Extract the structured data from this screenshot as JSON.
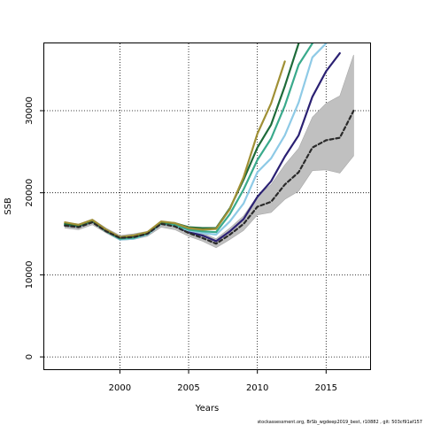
{
  "chart_data": {
    "type": "line",
    "title": "",
    "xlabel": "Years",
    "ylabel": "SSB",
    "xlim": [
      1994.5,
      2018.2
    ],
    "ylim": [
      -1500,
      38200
    ],
    "x_ticks": [
      2000,
      2005,
      2010,
      2015
    ],
    "y_ticks": [
      0,
      10000,
      20000,
      30000
    ],
    "grid": "dotted",
    "credit": "stockassessment.org, BrSb_wgdeep2019_best, r10882 , git: 503cf91af157",
    "band": {
      "x": [
        1996,
        1997,
        1998,
        1999,
        2000,
        2001,
        2002,
        2003,
        2004,
        2005,
        2006,
        2007,
        2008,
        2009,
        2010,
        2011,
        2012,
        2013,
        2014,
        2015,
        2016,
        2017
      ],
      "lower": [
        15700,
        15500,
        16100,
        15100,
        14200,
        14300,
        14700,
        15800,
        15500,
        14700,
        14100,
        13300,
        14300,
        15400,
        17300,
        17600,
        19200,
        20200,
        22700,
        22800,
        22400,
        24500
      ],
      "upper": [
        16400,
        16200,
        16800,
        15700,
        14800,
        15000,
        15300,
        16500,
        16300,
        15600,
        15100,
        14400,
        15700,
        17200,
        19600,
        21000,
        23400,
        25400,
        29200,
        30900,
        31800,
        36800
      ]
    },
    "series": [
      {
        "color": "#2a2a2a",
        "dash": true,
        "x": [
          1996,
          1997,
          1998,
          1999,
          2000,
          2001,
          2002,
          2003,
          2004,
          2005,
          2006,
          2007,
          2008,
          2009,
          2010,
          2011,
          2012,
          2013,
          2014,
          2015,
          2016,
          2017
        ],
        "values": [
          16000,
          15800,
          16400,
          15300,
          14500,
          14600,
          15000,
          16200,
          15900,
          15100,
          14500,
          13800,
          14900,
          16200,
          18300,
          18900,
          21000,
          22500,
          25500,
          26400,
          26700,
          30000
        ]
      },
      {
        "color": "#2b2173",
        "x": [
          1996,
          1997,
          1998,
          1999,
          2000,
          2001,
          2002,
          2003,
          2004,
          2005,
          2006,
          2007,
          2008,
          2009,
          2010,
          2011,
          2012,
          2013,
          2014,
          2015,
          2016
        ],
        "values": [
          16000,
          15900,
          16500,
          15400,
          14500,
          14700,
          15100,
          16300,
          16000,
          15200,
          14800,
          14100,
          15300,
          16800,
          19500,
          21400,
          24400,
          27000,
          31700,
          34800,
          37000
        ]
      },
      {
        "color": "#8ecae6",
        "x": [
          1996,
          1997,
          1998,
          1999,
          2000,
          2001,
          2002,
          2003,
          2004,
          2005,
          2006,
          2007,
          2008,
          2009,
          2010,
          2011,
          2012,
          2013,
          2014,
          2015
        ],
        "values": [
          16100,
          15900,
          16500,
          15300,
          14300,
          14400,
          14900,
          16200,
          16000,
          15400,
          15100,
          14900,
          16500,
          18700,
          22500,
          24200,
          27000,
          31000,
          36500,
          38200
        ]
      },
      {
        "color": "#3aaa8c",
        "x": [
          1996,
          1997,
          1998,
          1999,
          2000,
          2001,
          2002,
          2003,
          2004,
          2005,
          2006,
          2007,
          2008,
          2009,
          2010,
          2011,
          2012,
          2013,
          2014
        ],
        "values": [
          16100,
          16000,
          16500,
          15300,
          14400,
          14500,
          15000,
          16300,
          16100,
          15500,
          15300,
          15200,
          17400,
          20400,
          24000,
          26600,
          30600,
          35600,
          38200
        ]
      },
      {
        "color": "#1e6b3a",
        "x": [
          1996,
          1997,
          1998,
          1999,
          2000,
          2001,
          2002,
          2003,
          2004,
          2005,
          2006,
          2007,
          2008,
          2009,
          2010,
          2011,
          2012,
          2013
        ],
        "values": [
          16200,
          16000,
          16600,
          15400,
          14500,
          14700,
          15100,
          16400,
          16300,
          15800,
          15700,
          15700,
          18100,
          21600,
          25500,
          28300,
          33000,
          38200
        ]
      },
      {
        "color": "#a09035",
        "x": [
          1996,
          1997,
          1998,
          1999,
          2000,
          2001,
          2002,
          2003,
          2004,
          2005,
          2006,
          2007,
          2008,
          2009,
          2010,
          2011,
          2012
        ],
        "values": [
          16400,
          16100,
          16700,
          15500,
          14600,
          14800,
          15200,
          16500,
          16300,
          15700,
          15500,
          15600,
          18000,
          21900,
          27200,
          30900,
          36000
        ]
      }
    ]
  }
}
